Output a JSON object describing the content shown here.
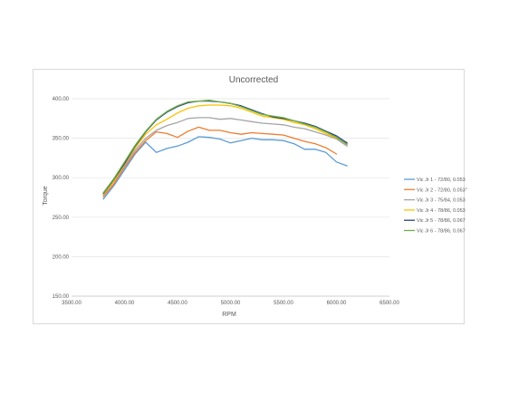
{
  "chart_data": {
    "type": "line",
    "title": "Uncorrected",
    "xlabel": "RPM",
    "ylabel": "Torque",
    "xlim": [
      3500,
      6500
    ],
    "ylim": [
      150,
      400
    ],
    "xticks": [
      "3500.00",
      "4000.00",
      "4500.00",
      "5000.00",
      "5500.00",
      "6000.00",
      "6500.00"
    ],
    "yticks": [
      "150.00",
      "200.00",
      "250.00",
      "300.00",
      "350.00",
      "400.00"
    ],
    "grid": true,
    "legend_position": "right",
    "series": [
      {
        "name": "Vic Jr 1 - 72/80, 0.053",
        "color": "#5b9bd5",
        "points": [
          [
            3800,
            273
          ],
          [
            3900,
            290
          ],
          [
            4000,
            310
          ],
          [
            4100,
            330
          ],
          [
            4200,
            345
          ],
          [
            4300,
            332
          ],
          [
            4400,
            337
          ],
          [
            4500,
            340
          ],
          [
            4600,
            345
          ],
          [
            4700,
            352
          ],
          [
            4800,
            351
          ],
          [
            4900,
            349
          ],
          [
            5000,
            344
          ],
          [
            5100,
            347
          ],
          [
            5200,
            350
          ],
          [
            5300,
            348
          ],
          [
            5400,
            348
          ],
          [
            5500,
            347
          ],
          [
            5600,
            343
          ],
          [
            5700,
            336
          ],
          [
            5800,
            336
          ],
          [
            5900,
            332
          ],
          [
            6000,
            320
          ],
          [
            6100,
            315
          ]
        ]
      },
      {
        "name": "Vic Jr 2 - 72/80, 0.053\"",
        "color": "#ed7d31",
        "points": [
          [
            3800,
            276
          ],
          [
            3900,
            292
          ],
          [
            4000,
            313
          ],
          [
            4100,
            332
          ],
          [
            4200,
            347
          ],
          [
            4300,
            358
          ],
          [
            4400,
            356
          ],
          [
            4500,
            351
          ],
          [
            4600,
            359
          ],
          [
            4700,
            364
          ],
          [
            4800,
            360
          ],
          [
            4900,
            360
          ],
          [
            5000,
            357
          ],
          [
            5100,
            355
          ],
          [
            5200,
            357
          ],
          [
            5300,
            356
          ],
          [
            5400,
            355
          ],
          [
            5500,
            354
          ],
          [
            5600,
            350
          ],
          [
            5700,
            346
          ],
          [
            5800,
            343
          ],
          [
            5900,
            338
          ],
          [
            6000,
            330
          ]
        ]
      },
      {
        "name": "Vic Jr 3 - 75/84, 0.053",
        "color": "#a5a5a5",
        "points": [
          [
            3800,
            278
          ],
          [
            3900,
            295
          ],
          [
            4000,
            315
          ],
          [
            4100,
            335
          ],
          [
            4200,
            350
          ],
          [
            4300,
            360
          ],
          [
            4400,
            366
          ],
          [
            4500,
            370
          ],
          [
            4600,
            375
          ],
          [
            4700,
            376
          ],
          [
            4800,
            376
          ],
          [
            4900,
            374
          ],
          [
            5000,
            375
          ],
          [
            5100,
            373
          ],
          [
            5200,
            371
          ],
          [
            5300,
            369
          ],
          [
            5400,
            368
          ],
          [
            5500,
            367
          ],
          [
            5600,
            364
          ],
          [
            5700,
            362
          ],
          [
            5800,
            358
          ],
          [
            5900,
            354
          ],
          [
            6000,
            349
          ],
          [
            6100,
            340
          ]
        ]
      },
      {
        "name": "Vic Jr 4 - 78/86, 0.053",
        "color": "#ffc000",
        "points": [
          [
            3800,
            279
          ],
          [
            3900,
            296
          ],
          [
            4000,
            317
          ],
          [
            4100,
            338
          ],
          [
            4200,
            355
          ],
          [
            4300,
            367
          ],
          [
            4400,
            374
          ],
          [
            4500,
            382
          ],
          [
            4600,
            388
          ],
          [
            4700,
            391
          ],
          [
            4800,
            392
          ],
          [
            4900,
            392
          ],
          [
            5000,
            391
          ],
          [
            5100,
            388
          ],
          [
            5200,
            383
          ],
          [
            5300,
            378
          ],
          [
            5400,
            376
          ],
          [
            5500,
            374
          ],
          [
            5600,
            370
          ],
          [
            5700,
            367
          ],
          [
            5800,
            362
          ],
          [
            5900,
            356
          ],
          [
            6000,
            350
          ],
          [
            6100,
            343
          ]
        ]
      },
      {
        "name": "Vic Jr 5 - 78/86, 0.067",
        "color": "#264478",
        "points": [
          [
            3800,
            280
          ],
          [
            3900,
            298
          ],
          [
            4000,
            318
          ],
          [
            4100,
            340
          ],
          [
            4200,
            358
          ],
          [
            4300,
            373
          ],
          [
            4400,
            383
          ],
          [
            4500,
            390
          ],
          [
            4600,
            395
          ],
          [
            4700,
            397
          ],
          [
            4800,
            397
          ],
          [
            4900,
            396
          ],
          [
            5000,
            394
          ],
          [
            5100,
            391
          ],
          [
            5200,
            386
          ],
          [
            5300,
            381
          ],
          [
            5400,
            377
          ],
          [
            5500,
            375
          ],
          [
            5600,
            372
          ],
          [
            5700,
            369
          ],
          [
            5800,
            365
          ],
          [
            5900,
            359
          ],
          [
            6000,
            353
          ],
          [
            6100,
            344
          ]
        ]
      },
      {
        "name": "Vic Jr 6 - 78/86, 0.067",
        "color": "#70ad47",
        "points": [
          [
            3800,
            281
          ],
          [
            3900,
            299
          ],
          [
            4000,
            320
          ],
          [
            4100,
            341
          ],
          [
            4200,
            359
          ],
          [
            4300,
            374
          ],
          [
            4400,
            384
          ],
          [
            4500,
            391
          ],
          [
            4600,
            396
          ],
          [
            4700,
            397
          ],
          [
            4800,
            398
          ],
          [
            4900,
            396
          ],
          [
            5000,
            394
          ],
          [
            5100,
            390
          ],
          [
            5200,
            385
          ],
          [
            5300,
            380
          ],
          [
            5400,
            378
          ],
          [
            5500,
            376
          ],
          [
            5600,
            372
          ],
          [
            5700,
            368
          ],
          [
            5800,
            364
          ],
          [
            5900,
            358
          ],
          [
            6000,
            351
          ],
          [
            6100,
            342
          ]
        ]
      }
    ]
  }
}
